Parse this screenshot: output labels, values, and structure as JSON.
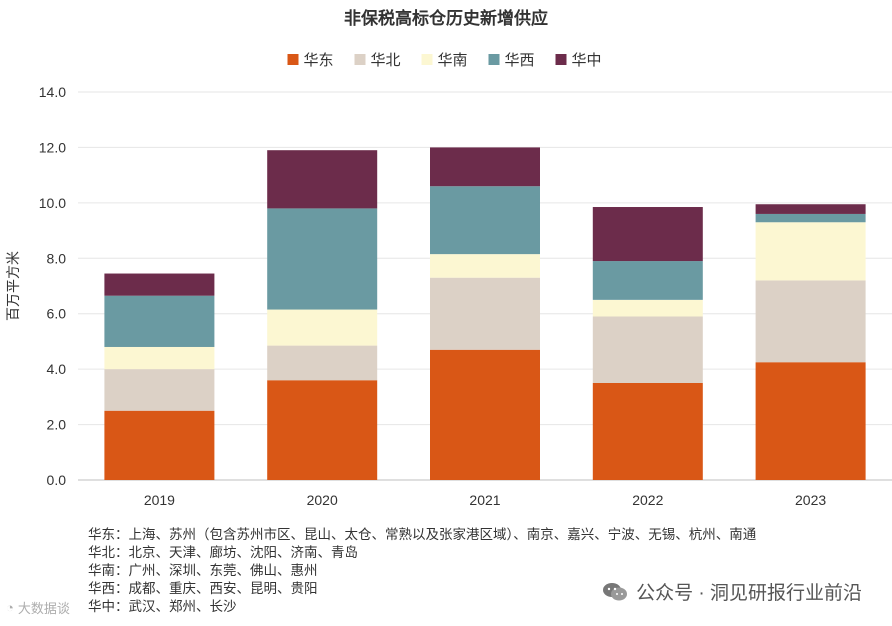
{
  "chart_data": {
    "type": "bar",
    "stacked": true,
    "title": "非保税高标仓历史新增供应",
    "ylabel": "百万平方米",
    "xlabel": "",
    "ylim": [
      0,
      14
    ],
    "yticks": [
      "0.0",
      "2.0",
      "4.0",
      "6.0",
      "8.0",
      "10.0",
      "12.0",
      "14.0"
    ],
    "categories": [
      "2019",
      "2020",
      "2021",
      "2022",
      "2023"
    ],
    "legend_position": "top",
    "series": [
      {
        "name": "华东",
        "color": "#d95716",
        "values": [
          2.5,
          3.6,
          4.7,
          3.5,
          4.25
        ]
      },
      {
        "name": "华北",
        "color": "#dcd1c6",
        "values": [
          1.5,
          1.25,
          2.6,
          2.4,
          2.95
        ]
      },
      {
        "name": "华南",
        "color": "#fcf7d2",
        "values": [
          0.8,
          1.3,
          0.85,
          0.6,
          2.1
        ]
      },
      {
        "name": "华西",
        "color": "#6a9aa2",
        "values": [
          1.85,
          3.65,
          2.45,
          1.4,
          0.3
        ]
      },
      {
        "name": "华中",
        "color": "#6c2c4b",
        "values": [
          0.8,
          2.1,
          1.4,
          1.95,
          0.35
        ]
      }
    ]
  },
  "notes": [
    "华东：上海、苏州（包含苏州市区、昆山、太仓、常熟以及张家港区域）、南京、嘉兴、宁波、无锡、杭州、南通",
    "华北：北京、天津、廊坊、沈阳、济南、青岛",
    "华南：广州、深圳、东莞、佛山、惠州",
    "华西：成都、重庆、西安、昆明、贵阳",
    "华中：武汉、郑州、长沙"
  ],
  "watermark": "公众号 · 洞见研报行业前沿",
  "corner_mark": "大数据谈"
}
